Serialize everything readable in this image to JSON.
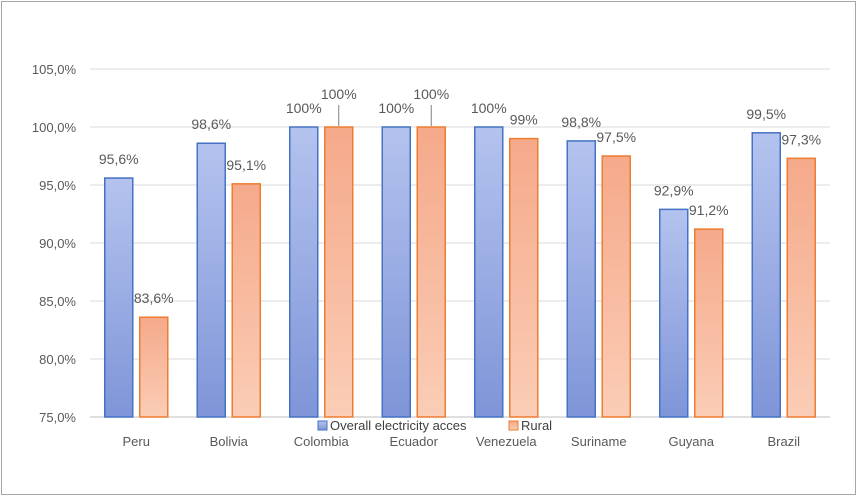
{
  "chart_data": {
    "type": "bar",
    "categories": [
      "Peru",
      "Bolivia",
      "Colombia",
      "Ecuador",
      "Venezuela",
      "Suriname",
      "Guyana",
      "Brazil"
    ],
    "series": [
      {
        "name": "Overall electricity acces",
        "values": [
          95.6,
          98.6,
          100,
          100,
          100,
          98.8,
          92.9,
          99.5
        ],
        "labels": [
          "95,6%",
          "98,6%",
          "100%",
          "100%",
          "100%",
          "98,8%",
          "92,9%",
          "99,5%"
        ],
        "color": "#8FA3E0",
        "border_color": "#4472C4"
      },
      {
        "name": "Rural",
        "values": [
          83.6,
          95.1,
          100,
          100,
          99,
          97.5,
          91.2,
          97.3
        ],
        "labels": [
          "83,6%",
          "95,1%",
          "100%",
          "100%",
          "99%",
          "97,5%",
          "91,2%",
          "97,3%"
        ],
        "color": "#F8B89A",
        "border_color": "#ED7D31"
      }
    ],
    "ylim": [
      75,
      105
    ],
    "yticks": [
      75,
      80,
      85,
      90,
      95,
      100,
      105
    ],
    "ytick_labels": [
      "75,0%",
      "80,0%",
      "85,0%",
      "90,0%",
      "95,0%",
      "100,0%",
      "105,0%"
    ],
    "grid": true,
    "legend_position": "bottom"
  }
}
